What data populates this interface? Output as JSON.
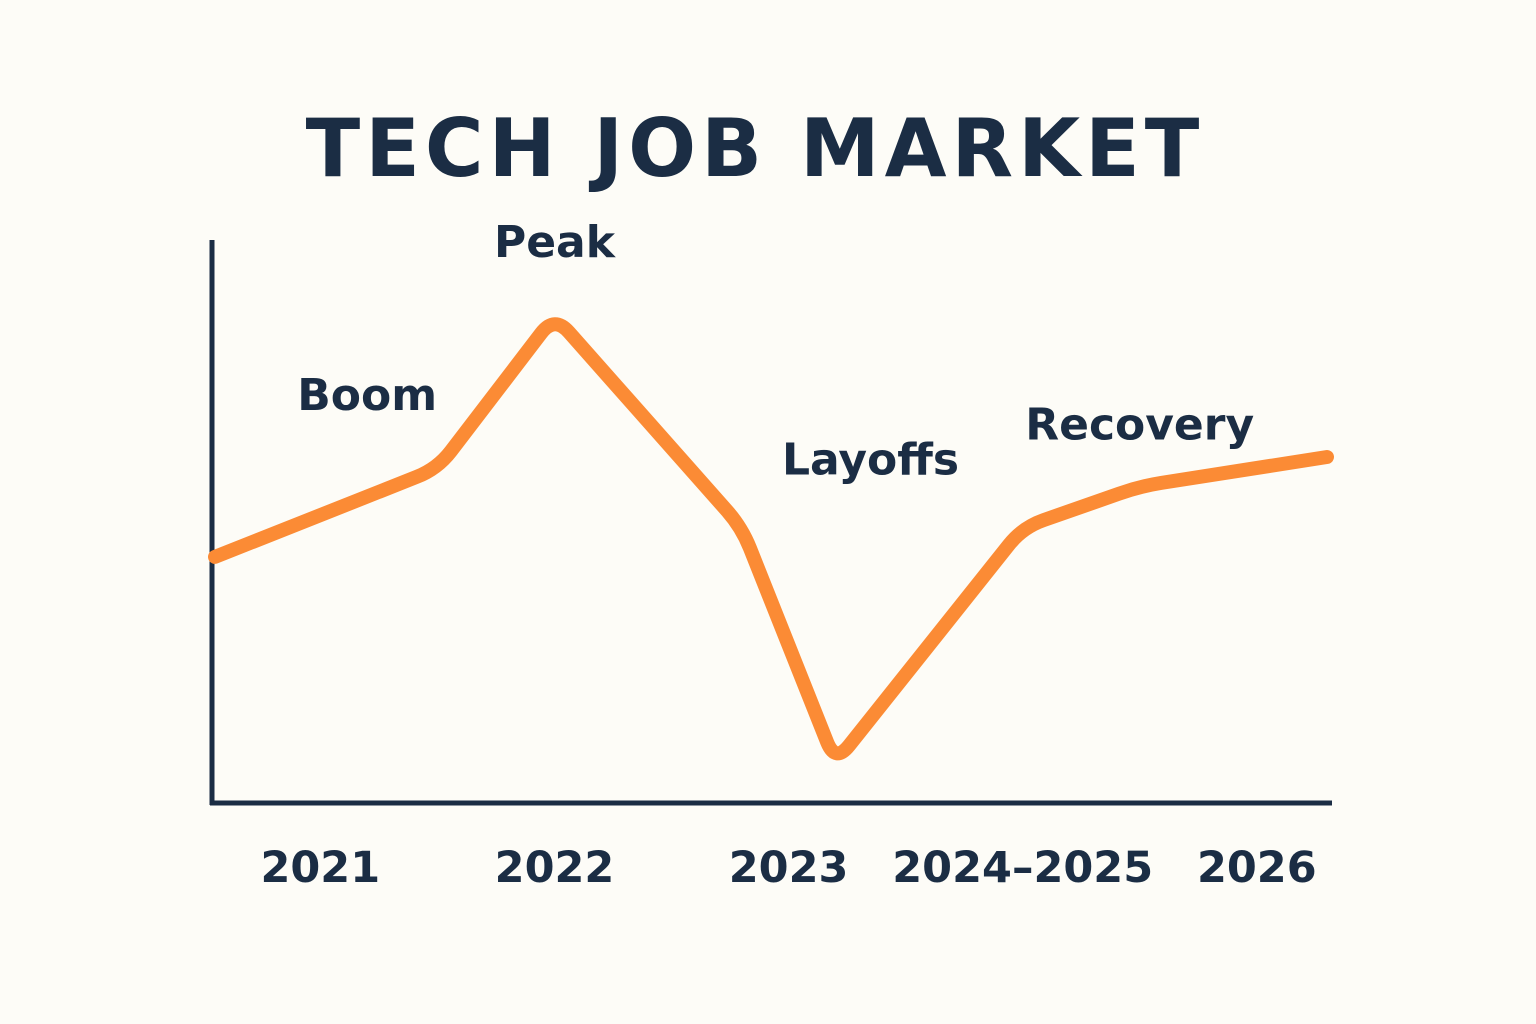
{
  "chart_data": {
    "type": "line",
    "title": "TECH JOB MARKET",
    "xlabel": "",
    "ylabel": "",
    "categories": [
      "2021",
      "2022",
      "2023",
      "2024–2025",
      "2026"
    ],
    "x": [
      0.0,
      1.0,
      2.0,
      3.0,
      4.0
    ],
    "xlim": [
      -0.45,
      4.3
    ],
    "ylim": [
      0,
      100
    ],
    "grid": false,
    "legend": "none",
    "series": [
      {
        "color": "#fb8b35",
        "points": [
          [
            -0.45,
            41
          ],
          [
            0.5,
            56
          ],
          [
            1.0,
            82
          ],
          [
            1.8,
            46
          ],
          [
            2.2,
            6
          ],
          [
            3.0,
            46
          ],
          [
            3.5,
            53
          ],
          [
            4.3,
            58
          ]
        ]
      }
    ],
    "annotations": [
      {
        "text": "Boom",
        "x": 0.2,
        "y": 66
      },
      {
        "text": "Peak",
        "x": 1.0,
        "y": 92
      },
      {
        "text": "Layoffs",
        "x": 2.35,
        "y": 55
      },
      {
        "text": "Recovery",
        "x": 3.5,
        "y": 61
      }
    ],
    "colors": {
      "line": "#fb8b35",
      "axis": "#1b2d44",
      "text": "#1b2d44",
      "background": "#fdfcf7"
    }
  }
}
